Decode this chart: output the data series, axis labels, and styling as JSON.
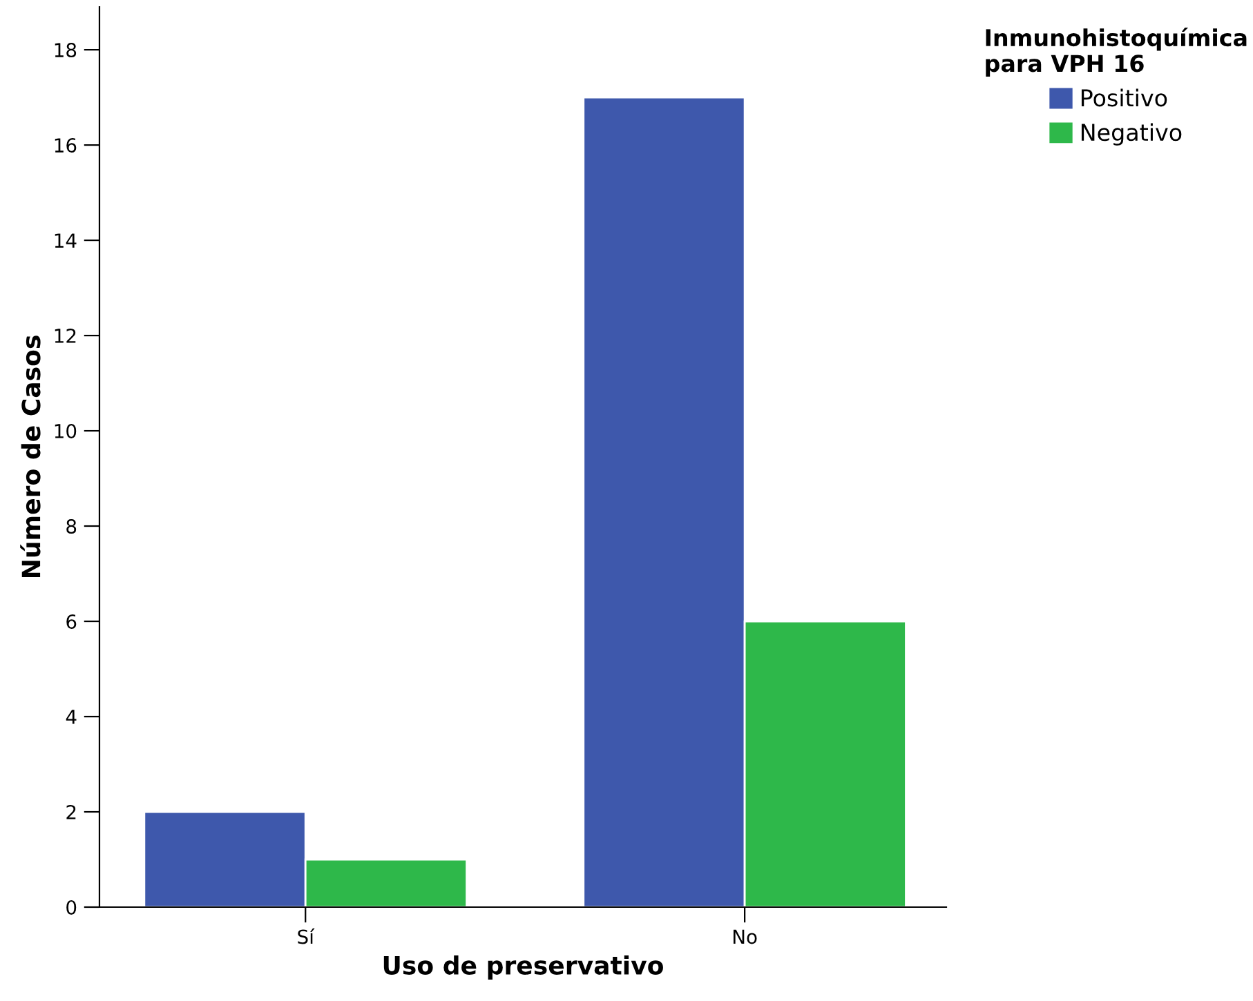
{
  "chart_data": {
    "type": "bar",
    "xlabel": "Uso de preservativo",
    "ylabel": "Número de Casos",
    "legend_title": "Inmunohistoquímica\npara VPH 16",
    "categories": [
      "Sí",
      "No"
    ],
    "series": [
      {
        "name": "Positivo",
        "color": "#3e58ac",
        "values": [
          2,
          17
        ]
      },
      {
        "name": "Negativo",
        "color": "#2eb84a",
        "values": [
          1,
          6
        ]
      }
    ],
    "ylim": [
      0,
      18.9
    ],
    "yticks": [
      0,
      2,
      4,
      6,
      8,
      10,
      12,
      14,
      16,
      18
    ],
    "grid": false,
    "legend": "top right"
  }
}
